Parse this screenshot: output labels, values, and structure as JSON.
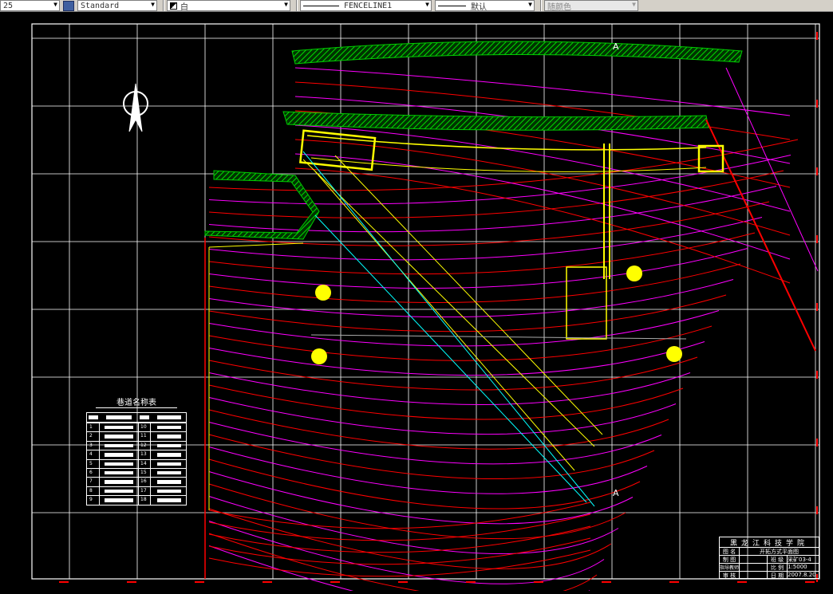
{
  "toolbar": {
    "scale_value": "25",
    "text_style": "Standard",
    "color": "白",
    "linetype": "FENCELINE1",
    "lineweight": "默认",
    "plot_style": "随颜色"
  },
  "drawing": {
    "section_marks": [
      "A",
      "A"
    ],
    "roadway_table": {
      "title": "巷道名称表",
      "numbers_left": [
        "1",
        "2",
        "3",
        "4",
        "5",
        "6",
        "7",
        "8",
        "9"
      ],
      "numbers_right": [
        "10",
        "11",
        "12",
        "13",
        "14",
        "15",
        "16",
        "17",
        "18"
      ]
    },
    "title_block": {
      "school": "黑龙江科技学院",
      "drawing_name_label": "图 名",
      "drawing_name": "开拓方式平面图",
      "drawn_label": "制 图",
      "class_label": "班 级",
      "class_value": "采矿03-4",
      "advisor_label": "指导教师",
      "scale_label": "比 例",
      "scale_value": "1:5000",
      "review_label": "审 核",
      "date_label": "日 期",
      "date_value": "2007.8.20"
    },
    "colors": {
      "grid": "#ffffff",
      "contour_red": "#ff0000",
      "contour_magenta": "#ff00ff",
      "roadway": "#ffff00",
      "hatch": "#00cc00",
      "cyan": "#00ffff"
    }
  }
}
